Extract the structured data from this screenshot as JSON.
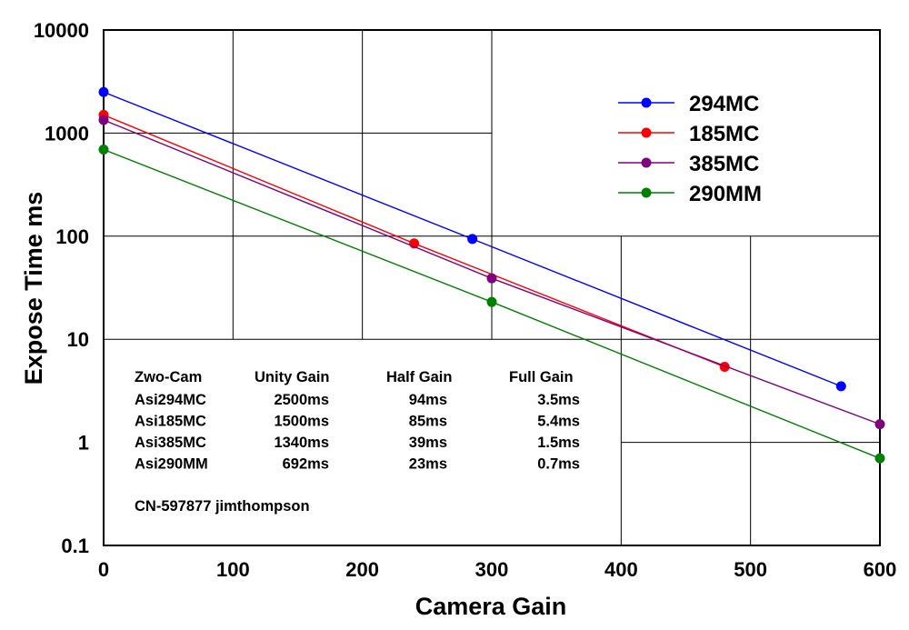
{
  "chart_data": {
    "type": "line",
    "xlabel": "Camera Gain",
    "ylabel": "Expose Time  ms",
    "y_scale": "log",
    "xlim": [
      0,
      600
    ],
    "ylim": [
      0.1,
      10000
    ],
    "x_ticks": [
      "0",
      "100",
      "200",
      "300",
      "400",
      "500",
      "600"
    ],
    "y_ticks": [
      "0.1",
      "1",
      "10",
      "100",
      "1000",
      "10000"
    ],
    "legend_position": "top-right",
    "series": [
      {
        "name": "294MC",
        "color": "#0000ff",
        "x": [
          0,
          285,
          570
        ],
        "y": [
          2500,
          94,
          3.5
        ]
      },
      {
        "name": "185MC",
        "color": "#ff0000",
        "x": [
          0,
          240,
          480
        ],
        "y": [
          1500,
          85,
          5.4
        ]
      },
      {
        "name": "385MC",
        "color": "#800080",
        "x": [
          0,
          300,
          600
        ],
        "y": [
          1340,
          39,
          1.5
        ]
      },
      {
        "name": "290MM",
        "color": "#008000",
        "x": [
          0,
          300,
          600
        ],
        "y": [
          692,
          23,
          0.7
        ]
      }
    ],
    "annotation_table": {
      "headers": [
        "Zwo-Cam",
        "Unity Gain",
        "Half Gain",
        "Full Gain"
      ],
      "rows": [
        [
          "Asi294MC",
          "2500ms",
          "94ms",
          "3.5ms"
        ],
        [
          "Asi185MC",
          "1500ms",
          "85ms",
          "5.4ms"
        ],
        [
          "Asi385MC",
          "1340ms",
          "39ms",
          "1.5ms"
        ],
        [
          "Asi290MM",
          "692ms",
          "23ms",
          "0.7ms"
        ]
      ]
    },
    "credit": "CN-597877   jimthompson"
  }
}
